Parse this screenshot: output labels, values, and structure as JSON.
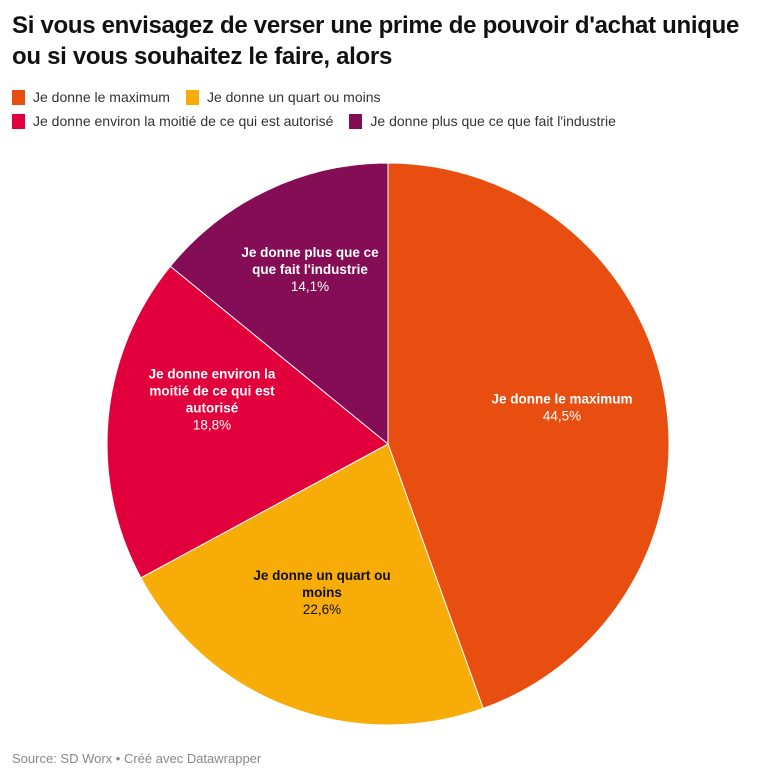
{
  "chart_data": {
    "type": "pie",
    "title": "Si vous envisagez de verser une prime de pouvoir d'achat unique ou si vous souhaitez le faire, alors",
    "legend_position": "top-left",
    "start": "12 o'clock, clockwise",
    "slices": [
      {
        "label": "Je donne le maximum",
        "value": 44.5,
        "value_label": "44,5%",
        "color": "#E84E10",
        "label_lines": [
          "Je donne le maximum"
        ],
        "text_color": "#ffffff"
      },
      {
        "label": "Je donne un quart ou moins",
        "value": 22.6,
        "value_label": "22,6%",
        "color": "#F7AC08",
        "label_lines": [
          "Je donne un quart ou",
          "moins"
        ],
        "text_color": "#111111"
      },
      {
        "label": "Je donne environ la moitié de ce qui est autorisé",
        "value": 18.8,
        "value_label": "18,8%",
        "color": "#E1003C",
        "label_lines": [
          "Je donne environ la",
          "moitié de ce qui est",
          "autorisé"
        ],
        "text_color": "#ffffff"
      },
      {
        "label": "Je donne plus que ce que fait l'industrie",
        "value": 14.1,
        "value_label": "14,1%",
        "color": "#850D56",
        "label_lines": [
          "Je donne plus que ce",
          "que fait l'industrie"
        ],
        "text_color": "#ffffff"
      }
    ]
  },
  "header": {
    "title": "Si vous envisagez de verser une prime de pouvoir d'achat unique ou si vous souhaitez le faire, alors"
  },
  "legend": {
    "rows": [
      [
        {
          "label": "Je donne le maximum",
          "color": "#E84E10"
        },
        {
          "label": "Je donne un quart ou moins",
          "color": "#F7AC08"
        }
      ],
      [
        {
          "label": "Je donne environ la moitié de ce qui est autorisé",
          "color": "#E1003C"
        },
        {
          "label": "Je donne plus que ce que fait l'industrie",
          "color": "#850D56"
        }
      ]
    ]
  },
  "footer": {
    "source": "Source: SD Worx • Créé avec Datawrapper"
  }
}
